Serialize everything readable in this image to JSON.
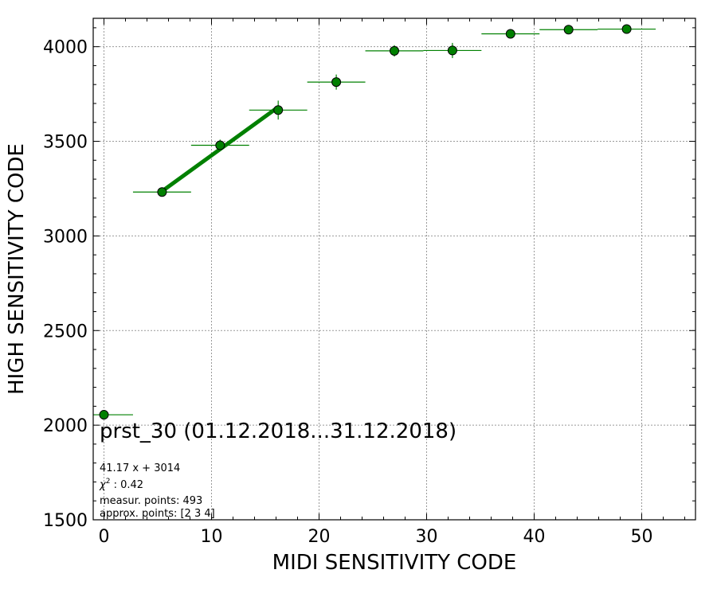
{
  "chart_data": {
    "type": "scatter",
    "xlabel": "MIDI SENSITIVITY CODE",
    "ylabel": "HIGH SENSITIVITY CODE",
    "xlim": [
      -1,
      55
    ],
    "ylim": [
      1500,
      4150
    ],
    "xticks": [
      0,
      10,
      20,
      30,
      40,
      50
    ],
    "xtick_labels": [
      "0",
      "10",
      "20",
      "30",
      "40",
      "50"
    ],
    "yticks": [
      1500,
      2000,
      2500,
      3000,
      3500,
      4000
    ],
    "ytick_labels": [
      "1500",
      "2000",
      "2500",
      "3000",
      "3500",
      "4000"
    ],
    "grid": true,
    "color": "#008000",
    "points": [
      {
        "x": 0.0,
        "y": 2055,
        "xerr": 2.7,
        "yerr": 0
      },
      {
        "x": 5.4,
        "y": 3232,
        "xerr": 2.7,
        "yerr": 20
      },
      {
        "x": 10.8,
        "y": 3479,
        "xerr": 2.7,
        "yerr": 30
      },
      {
        "x": 16.2,
        "y": 3665,
        "xerr": 2.7,
        "yerr": 50
      },
      {
        "x": 21.6,
        "y": 3813,
        "xerr": 2.7,
        "yerr": 40
      },
      {
        "x": 27.0,
        "y": 3978,
        "xerr": 2.7,
        "yerr": 30
      },
      {
        "x": 32.4,
        "y": 3980,
        "xerr": 2.7,
        "yerr": 40
      },
      {
        "x": 37.8,
        "y": 4068,
        "xerr": 2.7,
        "yerr": 15
      },
      {
        "x": 43.2,
        "y": 4090,
        "xerr": 2.7,
        "yerr": 15
      },
      {
        "x": 48.6,
        "y": 4093,
        "xerr": 2.7,
        "yerr": 15
      }
    ],
    "fit_line": {
      "slope": 41.17,
      "intercept": 3014,
      "x_range": [
        5.4,
        16.2
      ]
    },
    "annotations": {
      "title": "prst_30 (01.12.2018...31.12.2018)",
      "equation": "41.17 x + 3014",
      "chi2_prefix": "χ",
      "chi2_sup": "2",
      "chi2_value": " : 0.42",
      "measur_points": "measur. points: 493",
      "approx_points": "approx. points: [2 3 4]"
    }
  }
}
